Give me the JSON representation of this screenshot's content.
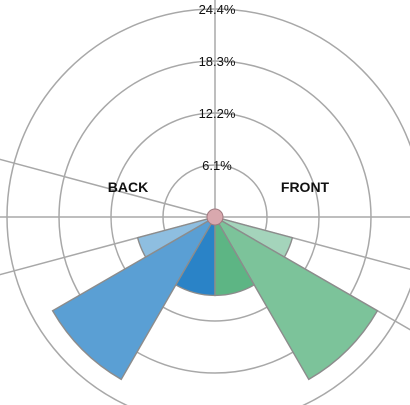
{
  "chart_data": {
    "type": "polar-bar",
    "title": "",
    "radial_axis": {
      "max": 24.4,
      "ticks": [
        6.1,
        12.2,
        18.3,
        24.4
      ],
      "tick_labels": [
        "6.1%",
        "12.2%",
        "18.3%",
        "24.4%"
      ],
      "unit": "%"
    },
    "side_labels": {
      "back": "BACK",
      "front": "FRONT"
    },
    "angular_gridlines_deg": [
      0,
      15,
      30,
      165,
      180,
      195,
      270
    ],
    "series": [
      {
        "name": "BACK",
        "color_scale": [
          "#8ebee0",
          "#4f98cf",
          "#2a83c7"
        ],
        "slices": [
          {
            "from_deg": 90,
            "to_deg": 120,
            "value": 9.2,
            "color": "#2a83c7"
          },
          {
            "from_deg": 120,
            "to_deg": 150,
            "value": 22.0,
            "color": "#5a9fd4"
          },
          {
            "from_deg": 150,
            "to_deg": 165,
            "value": 9.4,
            "color": "#8ebee0"
          }
        ]
      },
      {
        "name": "FRONT",
        "color_scale": [
          "#a4d4bb",
          "#7cc39a",
          "#5db584"
        ],
        "slices": [
          {
            "from_deg": 15,
            "to_deg": 30,
            "value": 9.4,
            "color": "#a4d4bb"
          },
          {
            "from_deg": 30,
            "to_deg": 60,
            "value": 22.0,
            "color": "#7cc39a"
          },
          {
            "from_deg": 60,
            "to_deg": 90,
            "value": 9.2,
            "color": "#5db584"
          }
        ]
      }
    ],
    "grid": true,
    "legend": "none"
  }
}
